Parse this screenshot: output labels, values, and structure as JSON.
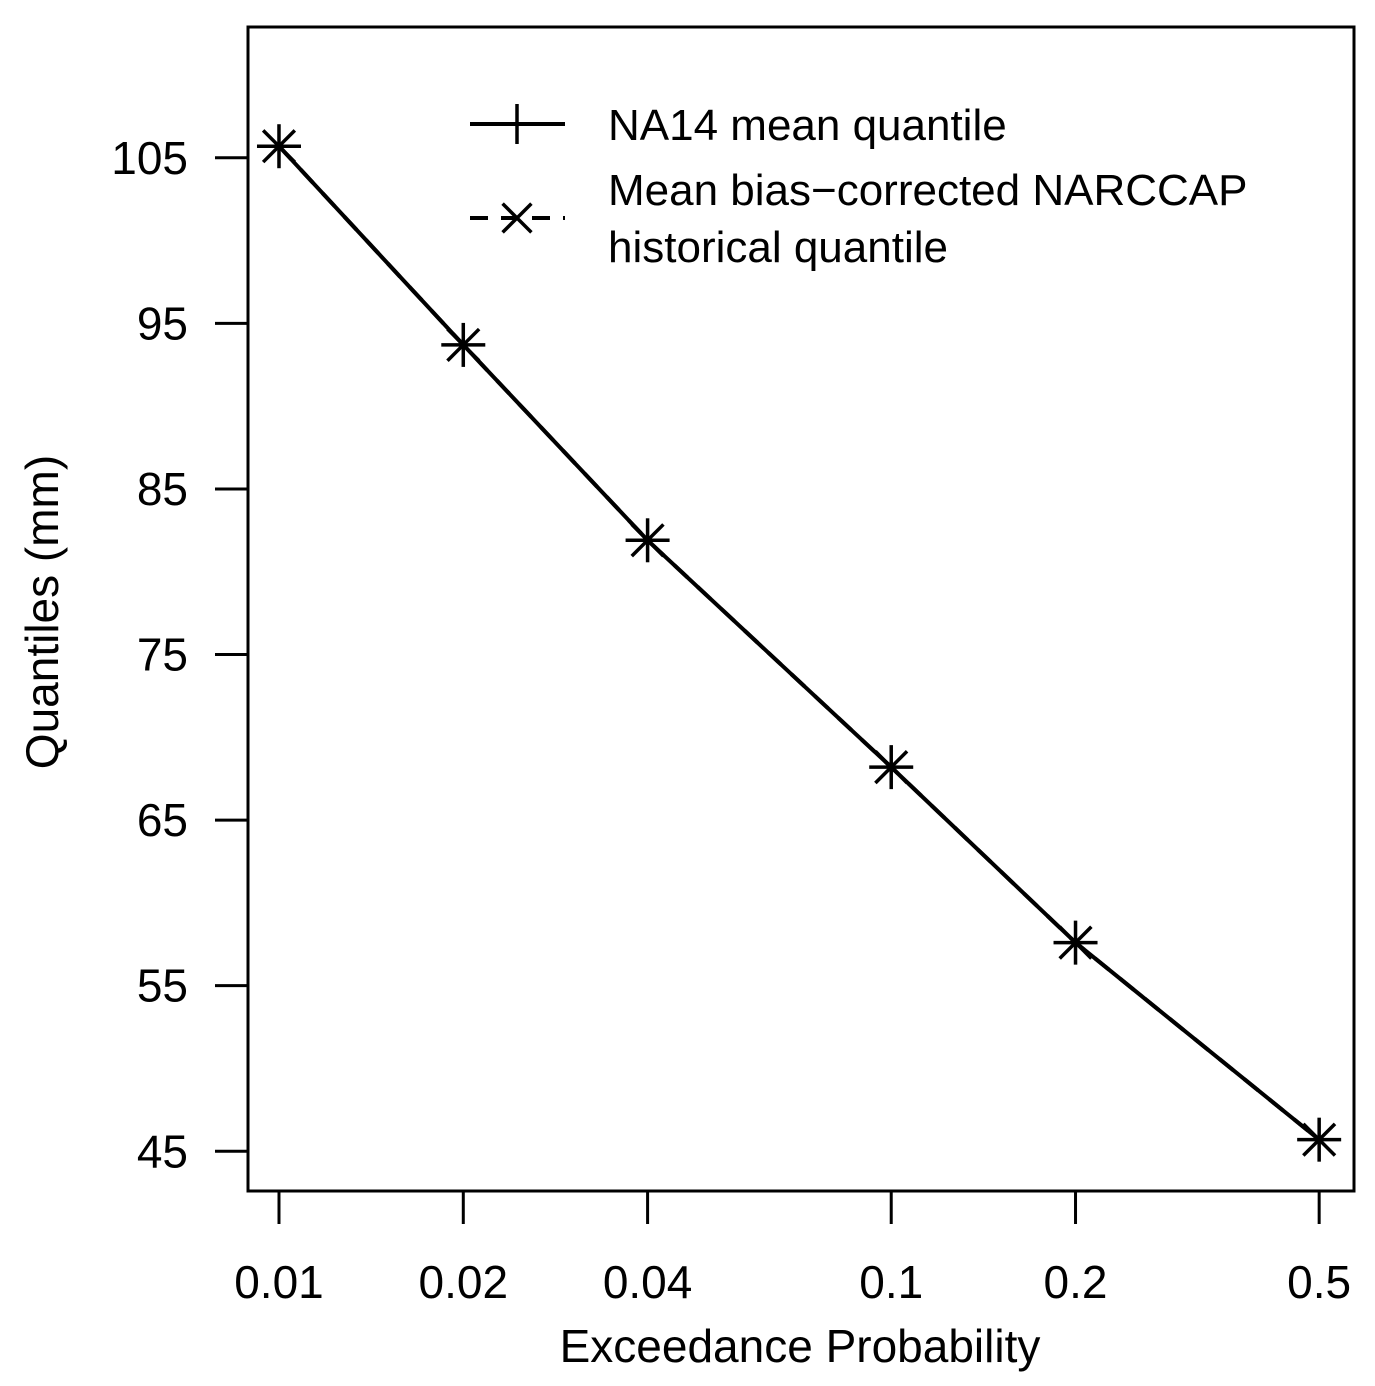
{
  "chart_data": {
    "type": "line",
    "xlabel": "Exceedance Probability",
    "ylabel": "Quantiles (mm)",
    "x_scale": "log",
    "xlim": [
      0.0089,
      0.57
    ],
    "ylim": [
      42.6,
      112.9
    ],
    "x_ticks": [
      0.01,
      0.02,
      0.04,
      0.1,
      0.2,
      0.5
    ],
    "x_tick_labels": [
      "0.01",
      "0.02",
      "0.04",
      "0.1",
      "0.2",
      "0.5"
    ],
    "y_ticks": [
      45,
      55,
      65,
      75,
      85,
      95,
      105
    ],
    "y_tick_labels": [
      "45",
      "55",
      "65",
      "75",
      "85",
      "95",
      "105"
    ],
    "grid": false,
    "legend_position": "top-right",
    "x": [
      0.01,
      0.02,
      0.04,
      0.1,
      0.2,
      0.5
    ],
    "series": [
      {
        "name": "NA14 mean quantile",
        "line": "solid",
        "marker": "plus",
        "color": "#000000",
        "values": [
          105.7,
          93.7,
          81.9,
          68.2,
          57.6,
          45.7
        ]
      },
      {
        "name": "Mean bias−corrected NARCCAP historical quantile",
        "legend_lines": [
          "Mean bias−corrected NARCCAP",
          "historical quantile"
        ],
        "line": "dashed",
        "marker": "x",
        "color": "#000000",
        "values": [
          105.7,
          93.7,
          81.9,
          68.2,
          57.6,
          45.7
        ]
      }
    ]
  }
}
